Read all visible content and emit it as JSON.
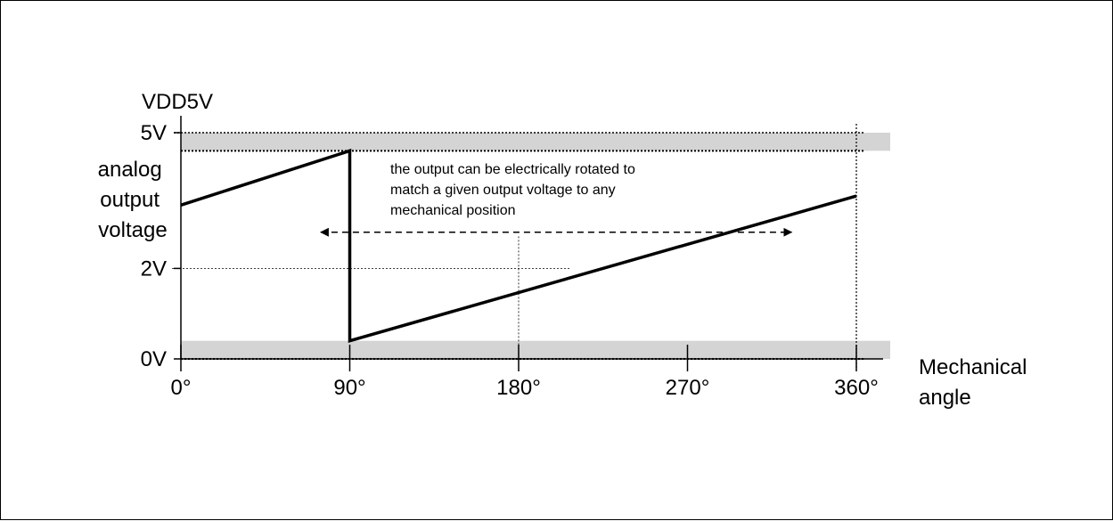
{
  "chart_data": {
    "type": "line",
    "title": "",
    "ylabel": "analog output voltage",
    "xlabel": "Mechanical angle",
    "supply_label": "VDD5V",
    "xlim": [
      0,
      360
    ],
    "ylim": [
      0,
      5
    ],
    "x_ticks": [
      0,
      90,
      180,
      270,
      360
    ],
    "x_tick_labels": [
      "0°",
      "90°",
      "180°",
      "270°",
      "360°"
    ],
    "y_tick_labels": [
      {
        "value": 5,
        "label": "5V"
      },
      {
        "value": 2,
        "label": "2V"
      },
      {
        "value": 0,
        "label": "0V"
      }
    ],
    "clamp_bands": [
      {
        "from": 4.6,
        "to": 5.0
      },
      {
        "from": 0.0,
        "to": 0.4
      }
    ],
    "series": [
      {
        "x": [
          0,
          90,
          90,
          360
        ],
        "values": [
          3.4,
          4.6,
          0.4,
          3.6
        ]
      }
    ],
    "reference_point": {
      "x": 180,
      "y": 2
    },
    "annotation": {
      "lines": [
        "the output can be electrically rotated to",
        "match a given output voltage to any",
        "mechanical position"
      ],
      "arrow_x_range": [
        75,
        325
      ],
      "arrow_y": 2.8
    },
    "grid": false,
    "legend": "none"
  }
}
